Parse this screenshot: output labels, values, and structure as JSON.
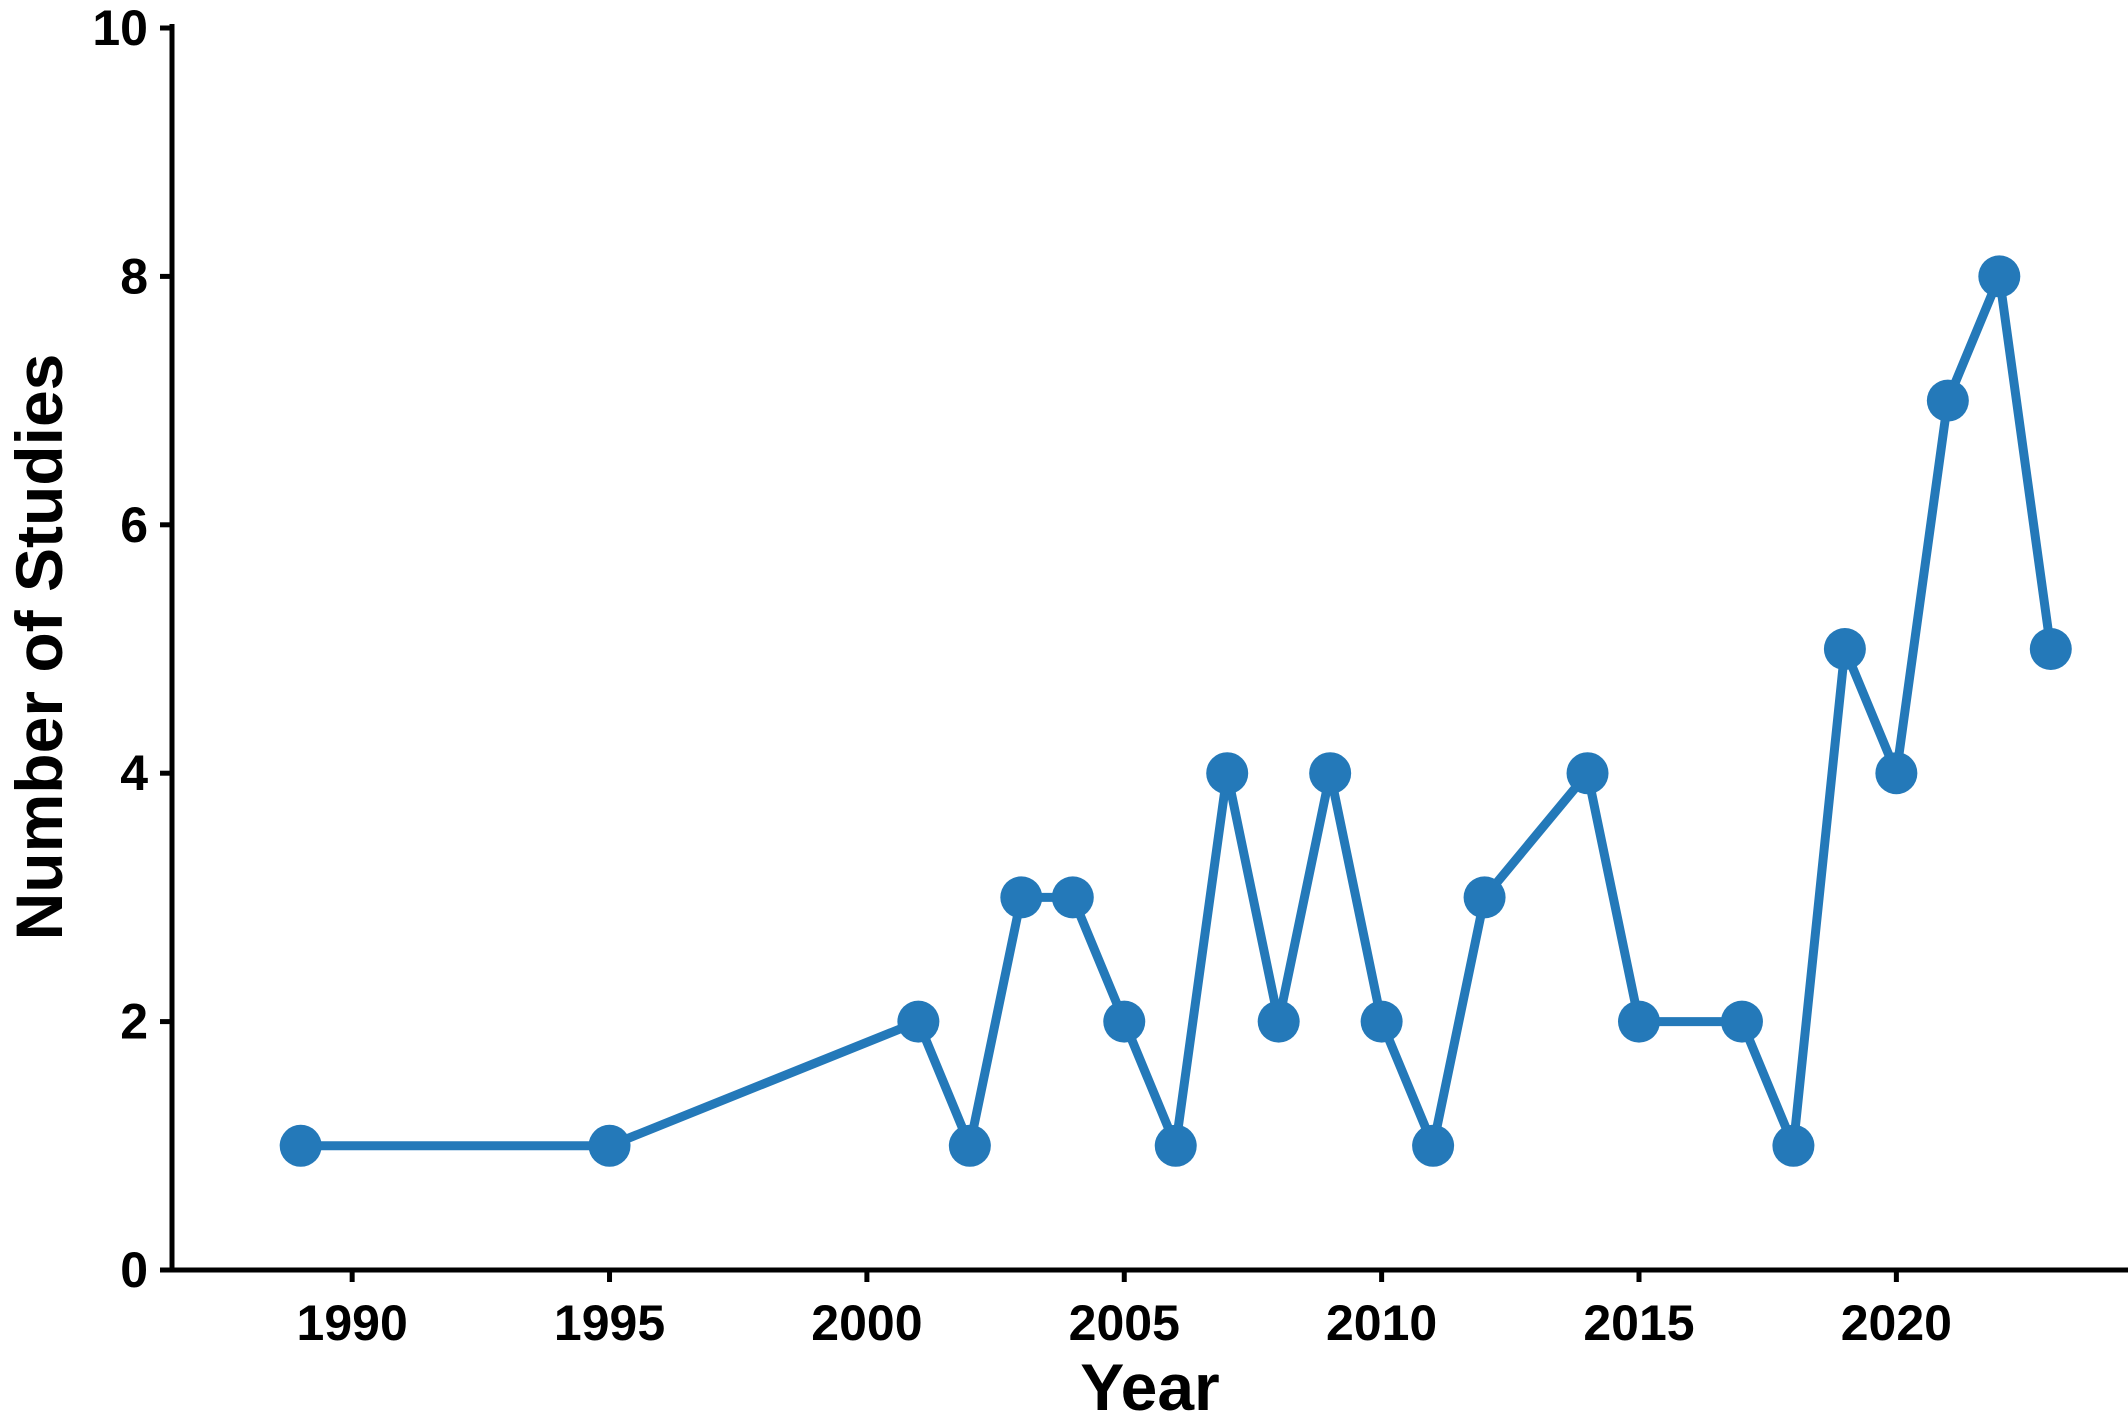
{
  "chart_data": {
    "type": "line",
    "title": "",
    "xlabel": "Year",
    "ylabel": "Number of Studies",
    "xlim": [
      1986.5,
      2024.5
    ],
    "ylim": [
      0,
      10
    ],
    "x_ticks": [
      1990,
      1995,
      2000,
      2005,
      2010,
      2015,
      2020
    ],
    "y_ticks": [
      0,
      2,
      4,
      6,
      8,
      10
    ],
    "grid": false,
    "legend": "none",
    "series": [
      {
        "color": "#2479b9",
        "x": [
          1989,
          1995,
          2001,
          2002,
          2003,
          2004,
          2005,
          2006,
          2007,
          2008,
          2009,
          2010,
          2011,
          2012,
          2014,
          2015,
          2017,
          2018,
          2019,
          2020,
          2021,
          2022,
          2023
        ],
        "y": [
          1,
          1,
          2,
          1,
          3,
          3,
          2,
          1,
          4,
          2,
          4,
          2,
          1,
          3,
          4,
          2,
          2,
          1,
          5,
          4,
          7,
          8,
          5
        ]
      }
    ]
  }
}
